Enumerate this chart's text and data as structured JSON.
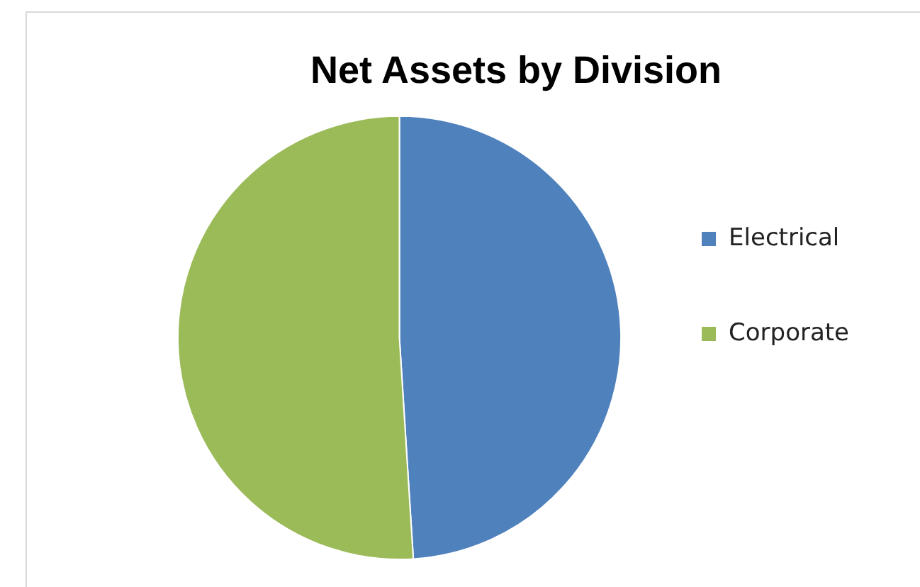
{
  "chart_data": {
    "type": "pie",
    "title": "Net Assets by Division",
    "categories": [
      "Electrical",
      "Corporate"
    ],
    "values": [
      49,
      51
    ],
    "colors": [
      "#4f81bd",
      "#9bbb59"
    ],
    "legend": "right"
  }
}
